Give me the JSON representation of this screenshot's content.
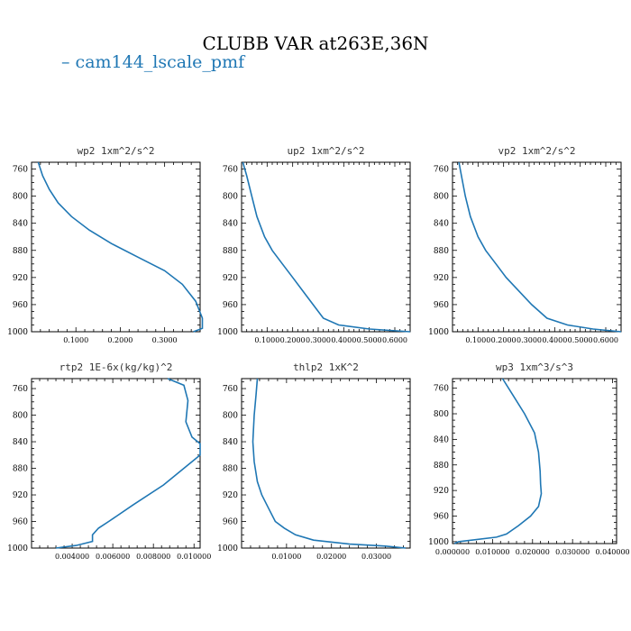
{
  "figure": {
    "title": "CLUBB VAR at263E,36N",
    "legend": "cam144_lscale_pmf",
    "line_color": "#1f77b4"
  },
  "chart_data": [
    {
      "type": "line",
      "title": "wp2  1xm^2/s^2",
      "xlim": [
        0.0,
        0.38
      ],
      "ylim": [
        1000,
        750
      ],
      "yticks": [
        760,
        800,
        840,
        880,
        920,
        960,
        1000
      ],
      "xticks": [
        0.1,
        0.2,
        0.3
      ],
      "xtick_labels": [
        "0.1000",
        "0.2000",
        "0.3000"
      ],
      "series": [
        {
          "x": [
            0.015,
            0.025,
            0.04,
            0.06,
            0.09,
            0.13,
            0.18,
            0.24,
            0.3,
            0.34,
            0.37,
            0.385,
            0.385,
            0.365
          ],
          "y": [
            750,
            770,
            790,
            810,
            830,
            850,
            870,
            890,
            910,
            930,
            955,
            980,
            995,
            1000
          ]
        }
      ]
    },
    {
      "type": "line",
      "title": "up2  1xm^2/s^2",
      "xlim": [
        0.0,
        0.66
      ],
      "ylim": [
        1000,
        750
      ],
      "yticks": [
        760,
        800,
        840,
        880,
        920,
        960,
        1000
      ],
      "xticks": [
        0.1,
        0.2,
        0.3,
        0.4,
        0.5,
        0.6
      ],
      "xtick_labels": [
        "0.1000",
        "0.2000",
        "0.3000",
        "0.4000",
        "0.5000",
        "0.6000"
      ],
      "series": [
        {
          "x": [
            0.005,
            0.02,
            0.04,
            0.06,
            0.09,
            0.12,
            0.16,
            0.2,
            0.24,
            0.28,
            0.32,
            0.38,
            0.5,
            0.66
          ],
          "y": [
            750,
            770,
            800,
            830,
            860,
            880,
            900,
            920,
            940,
            960,
            980,
            990,
            996,
            1000
          ]
        }
      ]
    },
    {
      "type": "line",
      "title": "vp2  1xm^2/s^2",
      "xlim": [
        0.0,
        0.66
      ],
      "ylim": [
        1000,
        750
      ],
      "yticks": [
        760,
        800,
        840,
        880,
        920,
        960,
        1000
      ],
      "xticks": [
        0.1,
        0.2,
        0.3,
        0.4,
        0.5,
        0.6
      ],
      "xtick_labels": [
        "0.1000",
        "0.2000",
        "0.3000",
        "0.4000",
        "0.5000",
        "0.6000"
      ],
      "series": [
        {
          "x": [
            0.025,
            0.035,
            0.05,
            0.07,
            0.1,
            0.13,
            0.17,
            0.21,
            0.26,
            0.31,
            0.37,
            0.45,
            0.55,
            0.66
          ],
          "y": [
            750,
            770,
            800,
            830,
            860,
            880,
            900,
            920,
            940,
            960,
            980,
            990,
            996,
            1000
          ]
        }
      ]
    },
    {
      "type": "line",
      "title": "rtp2  1E-6x(kg/kg)^2",
      "xlim": [
        0.002,
        0.0103
      ],
      "ylim": [
        1000,
        745
      ],
      "yticks": [
        760,
        800,
        840,
        880,
        920,
        960,
        1000
      ],
      "xticks": [
        0.004,
        0.006,
        0.008,
        0.01
      ],
      "xtick_labels": [
        "0.004000",
        "0.006000",
        "0.008000",
        "0.010000"
      ],
      "series": [
        {
          "x": [
            0.0087,
            0.0095,
            0.0097,
            0.0096,
            0.0099,
            0.0103,
            0.0103,
            0.0095,
            0.0085,
            0.007,
            0.0058,
            0.0053,
            0.005,
            0.005,
            0.0042,
            0.0032
          ],
          "y": [
            745,
            755,
            778,
            810,
            833,
            843,
            860,
            880,
            905,
            935,
            960,
            970,
            980,
            990,
            996,
            1000
          ]
        }
      ]
    },
    {
      "type": "line",
      "title": "thlp2  1xK^2",
      "xlim": [
        0.0,
        0.0375
      ],
      "ylim": [
        1000,
        745
      ],
      "yticks": [
        760,
        800,
        840,
        880,
        920,
        960,
        1000
      ],
      "xticks": [
        0.01,
        0.02,
        0.03
      ],
      "xtick_labels": [
        "0.01000",
        "0.02000",
        "0.03000"
      ],
      "series": [
        {
          "x": [
            0.0035,
            0.0032,
            0.0028,
            0.0025,
            0.0028,
            0.0035,
            0.0045,
            0.006,
            0.0075,
            0.0095,
            0.012,
            0.016,
            0.024,
            0.032,
            0.0365
          ],
          "y": [
            745,
            770,
            800,
            840,
            870,
            900,
            920,
            940,
            960,
            970,
            980,
            988,
            994,
            997,
            1000
          ]
        }
      ]
    },
    {
      "type": "line",
      "title": "wp3  1xm^3/s^3",
      "xlim": [
        0.0,
        0.041
      ],
      "ylim": [
        1003,
        745
      ],
      "yticks": [
        760,
        800,
        840,
        880,
        920,
        960,
        1000
      ],
      "xticks": [
        0.0,
        0.01,
        0.02,
        0.03,
        0.04
      ],
      "xtick_labels": [
        "0.000000",
        "0.010000",
        "0.020000",
        "0.030000",
        "0.040000"
      ],
      "series": [
        {
          "x": [
            0.0125,
            0.015,
            0.018,
            0.0205,
            0.0215,
            0.0219,
            0.022,
            0.0222,
            0.0215,
            0.0195,
            0.0165,
            0.0135,
            0.011,
            0.0015,
            0.0005
          ],
          "y": [
            745,
            770,
            800,
            830,
            860,
            890,
            910,
            925,
            945,
            960,
            975,
            988,
            993,
            1000,
            1003
          ]
        }
      ]
    }
  ]
}
